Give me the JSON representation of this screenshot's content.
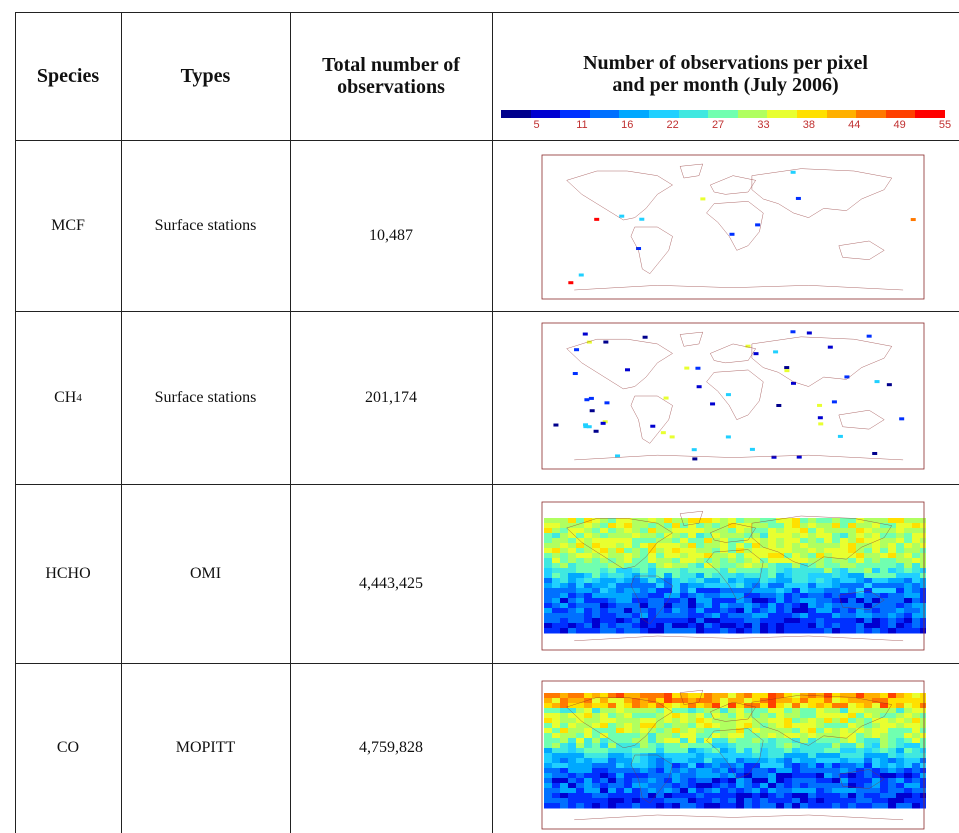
{
  "table": {
    "headers": {
      "species": "Species",
      "types": "Types",
      "total_line1": "Total number of",
      "total_line2": "observations",
      "map_line1": "Number of observations per pixel",
      "map_line2": "and per  month (July 2006)"
    },
    "colorbar": {
      "ticks": [
        "5",
        "11",
        "16",
        "22",
        "27",
        "33",
        "38",
        "44",
        "49",
        "55"
      ],
      "colors": [
        "#00008c",
        "#0000d0",
        "#0030ff",
        "#0070ff",
        "#00a8ff",
        "#20d0ff",
        "#40e8e0",
        "#70ffb0",
        "#b0ff60",
        "#e8ff30",
        "#ffe000",
        "#ffb000",
        "#ff7800",
        "#ff4000",
        "#ff0000"
      ]
    },
    "rows": [
      {
        "species": "MCF",
        "species_sub": "",
        "type": "Surface stations",
        "total": "10,487"
      },
      {
        "species": "CH",
        "species_sub": "4",
        "type": "Surface stations",
        "total": "201,174"
      },
      {
        "species": "HCHO",
        "species_sub": "",
        "type": "OMI",
        "total": "4,443,425"
      },
      {
        "species": "CO",
        "species_sub": "",
        "type": "MOPITT",
        "total": "4,759,828"
      }
    ]
  }
}
